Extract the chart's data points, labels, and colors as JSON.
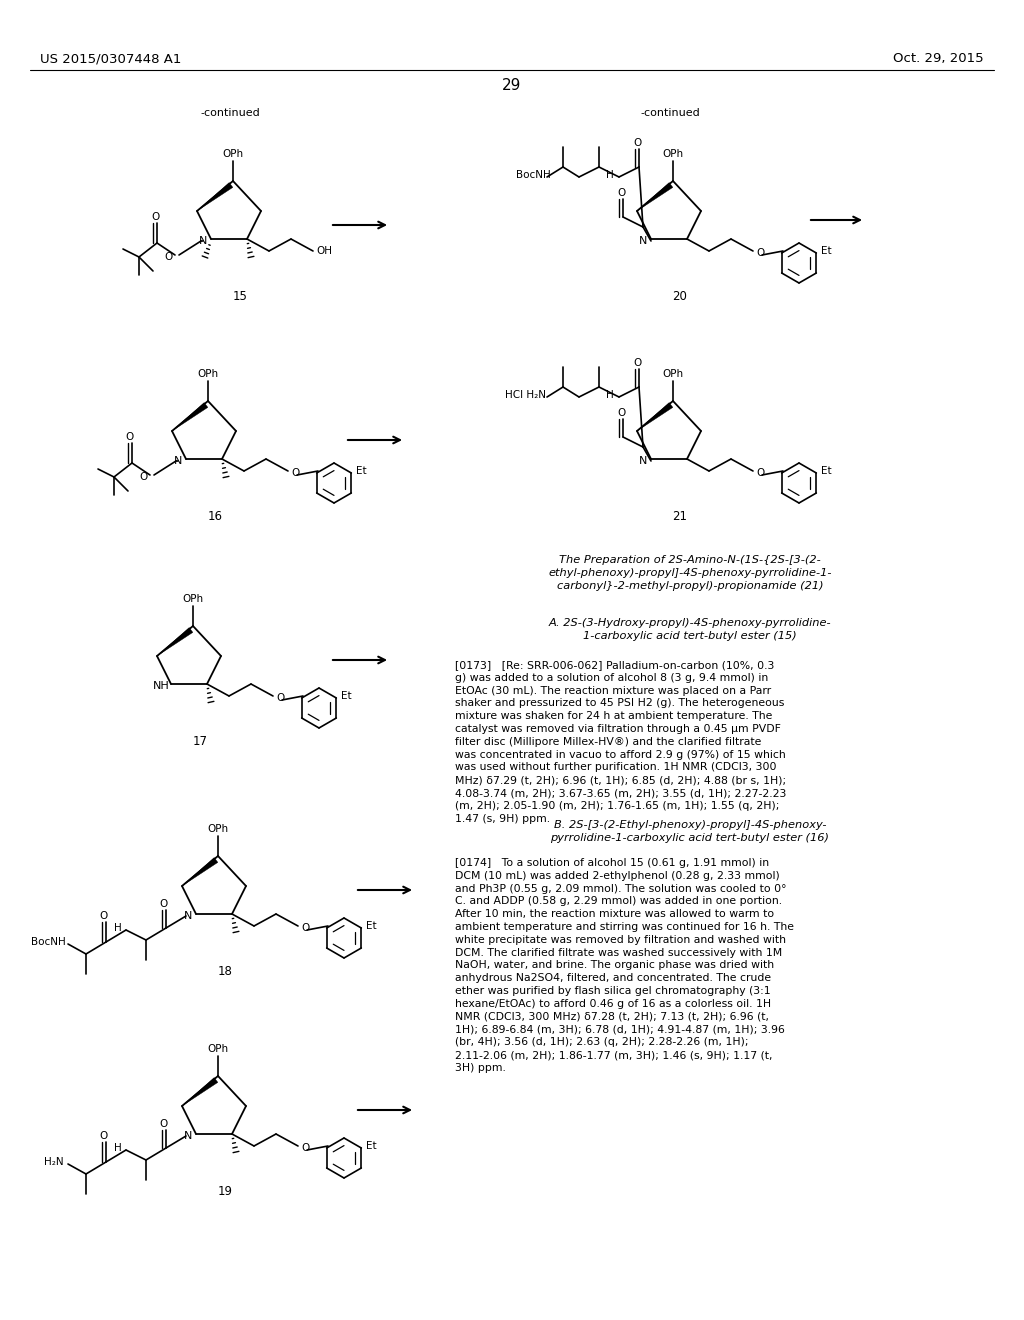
{
  "bg_color": "#ffffff",
  "header_left": "US 2015/0307448 A1",
  "header_right": "Oct. 29, 2015",
  "page_number": "29",
  "text_preparation_title": "The Preparation of 2S-Amino-N-(1S-{2S-[3-(2-\nethyl-phenoxy)-propyl]-4S-phenoxy-pyrrolidine-1-\ncarbonyl}-2-methyl-propyl)-propionamide (21)",
  "text_section_A": "A. 2S-(3-Hydroxy-propyl)-4S-phenoxy-pyrrolidine-\n1-carboxylic acid tert-butyl ester (15)",
  "text_para_173": "[0173]   [Re: SRR-006-062] Palladium-on-carbon (10%, 0.3\ng) was added to a solution of alcohol 8 (3 g, 9.4 mmol) in\nEtOAc (30 mL). The reaction mixture was placed on a Parr\nshaker and pressurized to 45 PSI H2 (g). The heterogeneous\nmixture was shaken for 24 h at ambient temperature. The\ncatalyst was removed via filtration through a 0.45 μm PVDF\nfilter disc (Millipore Millex-HV®) and the clarified filtrate\nwas concentrated in vacuo to afford 2.9 g (97%) of 15 which\nwas used without further purification. 1H NMR (CDCl3, 300\nMHz) δ7.29 (t, 2H); 6.96 (t, 1H); 6.85 (d, 2H); 4.88 (br s, 1H);\n4.08-3.74 (m, 2H); 3.67-3.65 (m, 2H); 3.55 (d, 1H); 2.27-2.23\n(m, 2H); 2.05-1.90 (m, 2H); 1.76-1.65 (m, 1H); 1.55 (q, 2H);\n1.47 (s, 9H) ppm.",
  "text_section_B": "B. 2S-[3-(2-Ethyl-phenoxy)-propyl]-4S-phenoxy-\npyrrolidine-1-carboxylic acid tert-butyl ester (16)",
  "text_para_174": "[0174]   To a solution of alcohol 15 (0.61 g, 1.91 mmol) in\nDCM (10 mL) was added 2-ethylphenol (0.28 g, 2.33 mmol)\nand Ph3P (0.55 g, 2.09 mmol). The solution was cooled to 0°\nC. and ADDP (0.58 g, 2.29 mmol) was added in one portion.\nAfter 10 min, the reaction mixture was allowed to warm to\nambient temperature and stirring was continued for 16 h. The\nwhite precipitate was removed by filtration and washed with\nDCM. The clarified filtrate was washed successively with 1M\nNaOH, water, and brine. The organic phase was dried with\nanhydrous Na2SO4, filtered, and concentrated. The crude\nether was purified by flash silica gel chromatography (3:1\nhexane/EtOAc) to afford 0.46 g of 16 as a colorless oil. 1H\nNMR (CDCl3, 300 MHz) δ7.28 (t, 2H); 7.13 (t, 2H); 6.96 (t,\n1H); 6.89-6.84 (m, 3H); 6.78 (d, 1H); 4.91-4.87 (m, 1H); 3.96\n(br, 4H); 3.56 (d, 1H); 2.63 (q, 2H); 2.28-2.26 (m, 1H);\n2.11-2.06 (m, 2H); 1.86-1.77 (m, 3H); 1.46 (s, 9H); 1.17 (t,\n3H) ppm."
}
